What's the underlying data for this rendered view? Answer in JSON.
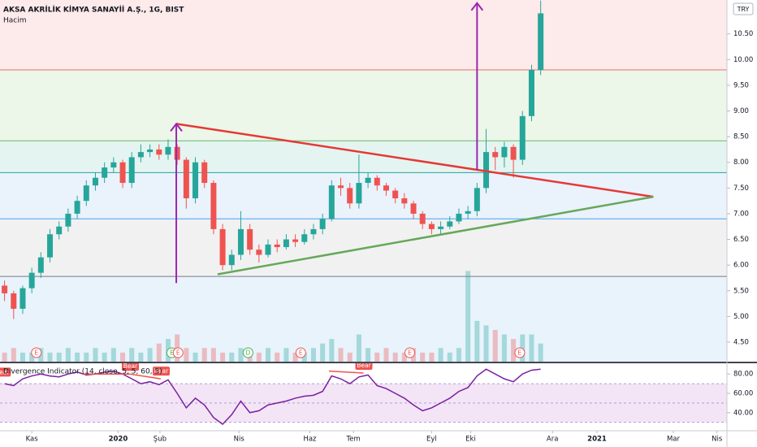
{
  "chart_data": {
    "type": "candlestick",
    "title": "AKSA AKRİLİK KİMYA SANAYİİ A.Ş., 1G, BIST",
    "volume_label": "Hacim",
    "currency": "TRY",
    "xlim": [
      0,
      80
    ],
    "xticks": [
      {
        "value": 3.5,
        "label": "Kas"
      },
      {
        "value": 13,
        "label": "2020"
      },
      {
        "value": 17.6,
        "label": "Şub"
      },
      {
        "value": 26.3,
        "label": "Nis"
      },
      {
        "value": 34.1,
        "label": "Haz"
      },
      {
        "value": 38.9,
        "label": "Tem"
      },
      {
        "value": 47.5,
        "label": "Eyl"
      },
      {
        "value": 51.8,
        "label": "Eki"
      },
      {
        "value": 60.8,
        "label": "Ara"
      },
      {
        "value": 65.7,
        "label": "2021"
      },
      {
        "value": 74.1,
        "label": "Mar"
      },
      {
        "value": 78.9,
        "label": "Nis"
      }
    ],
    "ylim": [
      4.12,
      11.16
    ],
    "yticks": [
      {
        "value": 4.5,
        "label": "4.50"
      },
      {
        "value": 5,
        "label": "5.00"
      },
      {
        "value": 5.5,
        "label": "5.50"
      },
      {
        "value": 6,
        "label": "6.00"
      },
      {
        "value": 6.5,
        "label": "6.50"
      },
      {
        "value": 7,
        "label": "7.00"
      },
      {
        "value": 7.5,
        "label": "7.50"
      },
      {
        "value": 8,
        "label": "8.00"
      },
      {
        "value": 8.5,
        "label": "8.50"
      },
      {
        "value": 9,
        "label": "9.00"
      },
      {
        "value": 9.5,
        "label": "9.50"
      },
      {
        "value": 10,
        "label": "10.00"
      },
      {
        "value": 10.5,
        "label": "10.50"
      }
    ],
    "up_color": "#26a69a",
    "down_color": "#ef5350",
    "open": [
      5.6,
      5.45,
      5.15,
      5.55,
      5.85,
      6.15,
      6.6,
      6.75,
      7.0,
      7.25,
      7.55,
      7.7,
      7.9,
      8.0,
      7.6,
      8.1,
      8.2,
      8.25,
      8.15,
      8.3,
      8.05,
      7.3,
      8.0,
      7.6,
      6.7,
      6.0,
      6.2,
      6.7,
      6.3,
      6.2,
      6.4,
      6.35,
      6.5,
      6.45,
      6.6,
      6.7,
      6.9,
      7.55,
      7.5,
      7.2,
      7.6,
      7.7,
      7.55,
      7.45,
      7.3,
      7.2,
      7.0,
      6.8,
      6.7,
      6.75,
      6.85,
      7.0,
      7.05,
      7.5,
      8.2,
      8.1,
      8.3,
      8.05,
      8.9,
      9.8
    ],
    "high": [
      5.7,
      5.5,
      5.6,
      5.95,
      6.25,
      6.7,
      6.85,
      7.1,
      7.35,
      7.65,
      7.8,
      8.0,
      8.1,
      8.05,
      8.2,
      8.35,
      8.35,
      8.35,
      8.45,
      8.35,
      8.1,
      8.1,
      8.05,
      7.65,
      6.8,
      6.3,
      7.05,
      6.8,
      6.4,
      6.5,
      6.5,
      6.6,
      6.6,
      6.7,
      6.8,
      7.0,
      7.65,
      7.7,
      7.6,
      8.15,
      7.8,
      7.75,
      7.6,
      7.5,
      7.4,
      7.25,
      7.05,
      6.85,
      6.85,
      6.95,
      7.1,
      7.15,
      7.6,
      8.65,
      8.3,
      8.4,
      8.35,
      9.0,
      9.9,
      11.15
    ],
    "low": [
      5.3,
      4.95,
      5.05,
      5.45,
      5.75,
      6.05,
      6.5,
      6.65,
      6.9,
      7.15,
      7.45,
      7.6,
      7.8,
      7.5,
      7.5,
      8.0,
      8.1,
      8.05,
      8.05,
      7.95,
      7.1,
      7.2,
      7.5,
      6.6,
      5.9,
      5.9,
      6.1,
      6.2,
      6.05,
      6.15,
      6.25,
      6.3,
      6.35,
      6.4,
      6.5,
      6.6,
      6.85,
      7.35,
      7.1,
      7.1,
      7.5,
      7.45,
      7.35,
      7.2,
      7.1,
      6.9,
      6.7,
      6.6,
      6.6,
      6.7,
      6.8,
      6.9,
      6.95,
      7.4,
      7.85,
      7.9,
      7.7,
      7.95,
      8.8,
      9.7
    ],
    "close": [
      5.45,
      5.15,
      5.55,
      5.85,
      6.15,
      6.6,
      6.75,
      7.0,
      7.25,
      7.55,
      7.7,
      7.9,
      8.0,
      7.6,
      8.1,
      8.2,
      8.25,
      8.15,
      8.3,
      8.05,
      7.3,
      8.0,
      7.6,
      6.7,
      6.0,
      6.2,
      6.7,
      6.3,
      6.2,
      6.4,
      6.35,
      6.5,
      6.45,
      6.6,
      6.7,
      6.9,
      7.55,
      7.5,
      7.2,
      7.6,
      7.7,
      7.55,
      7.45,
      7.3,
      7.2,
      7.0,
      6.8,
      6.7,
      6.75,
      6.85,
      7.0,
      7.05,
      7.5,
      8.2,
      8.1,
      8.3,
      8.05,
      8.9,
      9.8,
      10.9
    ],
    "volume": [
      2,
      3,
      2,
      2,
      3,
      2,
      2,
      3,
      2,
      2,
      3,
      2,
      3,
      2,
      3,
      2,
      3,
      4,
      5,
      6,
      3,
      2,
      3,
      3,
      2,
      2,
      3,
      2,
      2,
      3,
      2,
      3,
      2,
      2,
      3,
      4,
      5,
      3,
      2,
      6,
      3,
      2,
      3,
      2,
      2,
      3,
      2,
      2,
      3,
      2,
      3,
      20,
      9,
      8,
      7,
      6,
      5,
      6,
      6,
      4
    ],
    "volume_lim": [
      0,
      26
    ],
    "levels": [
      9.8,
      8.42,
      7.8,
      6.9,
      5.78
    ],
    "level_colors": [
      "#e57373",
      "#66bb6a",
      "#26a69a",
      "#42a5f5",
      "#787b86"
    ],
    "band_colors": [
      "#fdeaea",
      "#ecf6e9",
      "#e4f4f1",
      "#eaf2fb",
      "#f1f1f2",
      "#e8f3fc"
    ],
    "trendlines": [
      {
        "color": "#e53935",
        "from": [
          19.4,
          8.75
        ],
        "to": [
          71.9,
          7.33
        ]
      },
      {
        "color": "#66a85a",
        "from": [
          23.95,
          5.82
        ],
        "to": [
          71.9,
          7.33
        ]
      }
    ],
    "arrows": [
      {
        "color": "#9c27b0",
        "from": [
          19.4,
          5.65
        ],
        "to": [
          19.4,
          8.75
        ]
      },
      {
        "color": "#9c27b0",
        "from": [
          52.5,
          7.85
        ],
        "to": [
          52.5,
          11.1
        ]
      }
    ],
    "events": [
      {
        "label": "E",
        "x": 4,
        "color": "#ef5350"
      },
      {
        "label": "E",
        "x": 18.9,
        "color": "#4caf50"
      },
      {
        "label": "E",
        "x": 19.6,
        "color": "#ef5350"
      },
      {
        "label": "D",
        "x": 27.3,
        "color": "#4caf50"
      },
      {
        "label": "E",
        "x": 33.1,
        "color": "#ef5350"
      },
      {
        "label": "E",
        "x": 45.1,
        "color": "#ef5350"
      },
      {
        "label": "E",
        "x": 57.2,
        "color": "#ef5350"
      }
    ],
    "indicator": {
      "title": "Divergence Indicator (14, close, 5, 5, 60, 5)",
      "color": "#7b1fa2",
      "ylim": [
        21.3,
        91.1
      ],
      "yticks": [
        {
          "value": 40,
          "label": "40.00"
        },
        {
          "value": 60,
          "label": "60.00"
        },
        {
          "value": 80,
          "label": "80.00"
        }
      ],
      "band": [
        30,
        70
      ],
      "midline": 50,
      "values": [
        70,
        68,
        75,
        78,
        80,
        78,
        77,
        80,
        82,
        79,
        80,
        82,
        83,
        80,
        75,
        70,
        72,
        69,
        74,
        60,
        45,
        55,
        48,
        35,
        28,
        38,
        52,
        40,
        42,
        48,
        50,
        52,
        55,
        57,
        58,
        62,
        78,
        75,
        70,
        77,
        79,
        68,
        65,
        60,
        55,
        48,
        42,
        45,
        50,
        55,
        62,
        66,
        78,
        85,
        80,
        75,
        72,
        80,
        84,
        85
      ],
      "divergences": [
        {
          "label": "Bear",
          "from": [
            0.2,
            74
          ],
          "to": [
            0.2,
            74
          ]
        },
        {
          "label": "Bear",
          "from": [
            9,
            80
          ],
          "to": [
            14.3,
            80
          ]
        },
        {
          "label": "Bear",
          "from": [
            14.3,
            80
          ],
          "to": [
            17.7,
            75
          ]
        },
        {
          "label": "Bear",
          "from": [
            36.2,
            83
          ],
          "to": [
            40,
            81
          ]
        }
      ]
    }
  }
}
